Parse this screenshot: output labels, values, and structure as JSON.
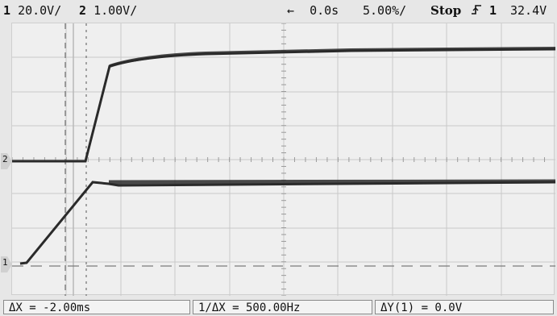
{
  "top_bar": {
    "ch1_num": "1",
    "ch1_scale": "20.0V/",
    "ch2_num": "2",
    "ch2_scale": "1.00V/",
    "delay_arrow": "←",
    "delay_value": "0.0s",
    "timebase": "5.00%/",
    "run_state": "Stop",
    "trigger_icon": "trigger-edge-icon",
    "trigger_source": "1",
    "trigger_level": "32.4V"
  },
  "markers": {
    "ch2_ground": "2",
    "ch1_ground": "1"
  },
  "measurements": {
    "delta_x": "ΔX = -2.00ms",
    "inv_delta_x": "1/ΔX = 500.00Hz",
    "delta_y": "ΔY(1) = 0.0V"
  },
  "colors": {
    "background": "#e7e7e7",
    "grid_line": "#c9c9c9",
    "trace": "#2a2a2a"
  }
}
